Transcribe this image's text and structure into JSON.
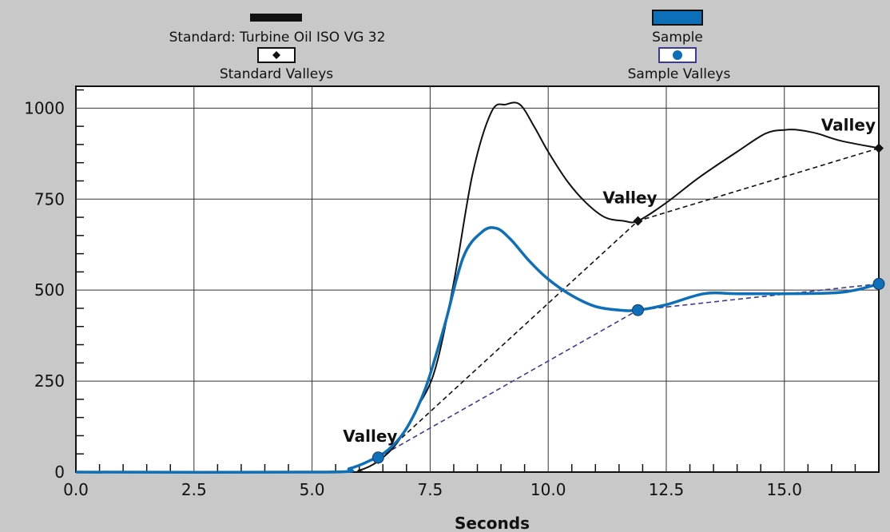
{
  "chart_data": {
    "type": "line",
    "title": "",
    "xlabel": "Seconds",
    "ylabel": "",
    "xlim": [
      0,
      17
    ],
    "ylim": [
      0,
      1060
    ],
    "x_ticks": [
      0,
      2.5,
      5,
      7.5,
      10,
      12.5,
      15
    ],
    "x_tick_labels": [
      "0.0",
      "2.5",
      "5.0",
      "7.5",
      "10.0",
      "12.5",
      "15.0"
    ],
    "y_ticks": [
      0,
      250,
      500,
      750,
      1000
    ],
    "y_tick_labels": [
      "0",
      "250",
      "500",
      "750",
      "1000"
    ],
    "grid": true,
    "legend_position": "top",
    "series": [
      {
        "name": "Standard: Turbine Oil ISO VG 32",
        "color": "#111111",
        "style": "solid",
        "x": [
          0,
          5.5,
          6.0,
          6.4,
          6.8,
          7.2,
          7.6,
          8.0,
          8.4,
          8.8,
          9.1,
          9.4,
          9.7,
          10.0,
          10.4,
          10.8,
          11.2,
          11.6,
          11.9,
          12.5,
          13.2,
          14.0,
          14.6,
          15.0,
          15.3,
          15.7,
          16.2,
          17.0
        ],
        "values": [
          0,
          0,
          5,
          30,
          80,
          170,
          280,
          520,
          820,
          990,
          1010,
          1010,
          950,
          880,
          800,
          740,
          700,
          690,
          690,
          740,
          810,
          880,
          930,
          940,
          940,
          930,
          910,
          890
        ]
      },
      {
        "name": "Sample",
        "color": "#0c6fb7",
        "style": "solid",
        "x": [
          0,
          5.3,
          5.8,
          6.2,
          6.6,
          7.0,
          7.4,
          7.8,
          8.2,
          8.6,
          8.9,
          9.2,
          9.6,
          10.0,
          10.5,
          11.0,
          11.5,
          11.9,
          12.5,
          13.3,
          14.0,
          15.0,
          16.0,
          16.5,
          17.0
        ],
        "values": [
          0,
          0,
          10,
          30,
          60,
          120,
          230,
          400,
          590,
          660,
          670,
          640,
          580,
          530,
          485,
          455,
          445,
          445,
          460,
          490,
          490,
          490,
          492,
          500,
          517
        ]
      },
      {
        "name": "Standard Valleys",
        "color": "#111111",
        "style": "dashed",
        "x": [
          6.4,
          11.9,
          17.0
        ],
        "values": [
          35,
          690,
          890
        ]
      },
      {
        "name": "Sample Valleys",
        "color": "#3a3a9a",
        "style": "dashed",
        "x": [
          6.4,
          11.9,
          17.0
        ],
        "values": [
          40,
          445,
          517
        ]
      }
    ],
    "annotations": [
      {
        "text": "Valley",
        "x": 6.4,
        "y": 35
      },
      {
        "text": "Valley",
        "x": 11.9,
        "y": 690
      },
      {
        "text": "Valley",
        "x": 17.0,
        "y": 890
      }
    ]
  }
}
